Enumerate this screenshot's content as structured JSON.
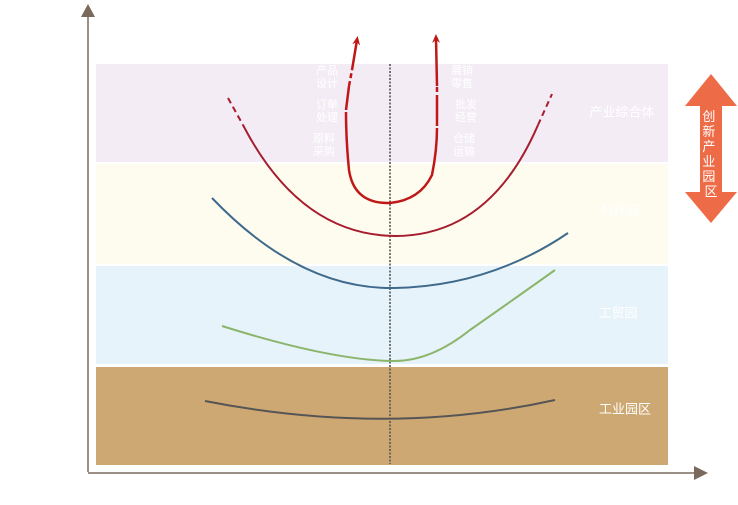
{
  "bands": [
    {
      "id": "industrial-complex",
      "label": "产业综合体",
      "color": "#f3ecf5"
    },
    {
      "id": "tech-park",
      "label": "科技园",
      "color": "#fdfcee"
    },
    {
      "id": "industrial-park",
      "label": "工贸园",
      "color": "#e7f3fb"
    },
    {
      "id": "industrial-zone",
      "label": "工业园区",
      "color": "#cea873"
    }
  ],
  "flow_labels": {
    "left": [
      "产品\n设计",
      "订单\n处理",
      "原料\n采购"
    ],
    "right": [
      "展销\n零售",
      "批发\n经营",
      "仓储\n运输"
    ]
  },
  "side_arrow": {
    "label": "创新产业园区",
    "color": "#ee6b47"
  },
  "curve_colors": {
    "top": "#a61c2e",
    "complex": "#a61c2e",
    "tech": "#3f6a8c",
    "trade": "#8ab56a",
    "zone": "#555555"
  },
  "axis_color": "#7a6a5e"
}
